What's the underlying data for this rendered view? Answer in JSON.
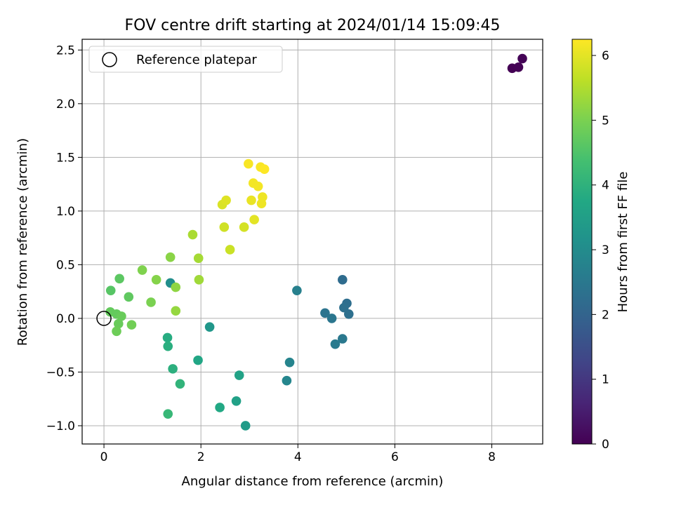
{
  "chart_data": {
    "type": "scatter",
    "title": "FOV centre drift starting at 2024/01/14 15:09:45",
    "xlabel": "Angular distance from reference (arcmin)",
    "ylabel": "Rotation from reference (arcmin)",
    "xlim": [
      -0.45,
      9.05
    ],
    "ylim": [
      -1.17,
      2.6
    ],
    "xticks": [
      0,
      2,
      4,
      6,
      8
    ],
    "yticks": [
      -1.0,
      -0.5,
      0.0,
      0.5,
      1.0,
      1.5,
      2.0,
      2.5
    ],
    "xtick_labels": [
      "0",
      "2",
      "4",
      "6",
      "8"
    ],
    "ytick_labels": [
      "−1.0",
      "−0.5",
      "0.0",
      "0.5",
      "1.0",
      "1.5",
      "2.0",
      "2.5"
    ],
    "grid": true,
    "legend": {
      "position": "top-left",
      "entries": [
        "Reference platepar"
      ]
    },
    "reference_point": {
      "x": 0,
      "y": 0
    },
    "colorbar": {
      "label": "Hours from first FF file",
      "range": [
        0,
        6.25
      ],
      "ticks": [
        0,
        1,
        2,
        3,
        4,
        5,
        6
      ],
      "tick_labels": [
        "0",
        "1",
        "2",
        "3",
        "4",
        "5",
        "6"
      ],
      "colormap": "viridis"
    },
    "points": [
      {
        "x": 8.42,
        "y": 2.33,
        "h": 0.0
      },
      {
        "x": 8.55,
        "y": 2.34,
        "h": 0.02
      },
      {
        "x": 8.63,
        "y": 2.42,
        "h": 0.04
      },
      {
        "x": 4.92,
        "y": 0.36,
        "h": 2.2
      },
      {
        "x": 5.01,
        "y": 0.14,
        "h": 2.25
      },
      {
        "x": 4.95,
        "y": 0.1,
        "h": 2.3
      },
      {
        "x": 5.05,
        "y": 0.04,
        "h": 2.3
      },
      {
        "x": 4.56,
        "y": 0.05,
        "h": 2.4
      },
      {
        "x": 4.7,
        "y": 0.0,
        "h": 2.45
      },
      {
        "x": 4.92,
        "y": -0.19,
        "h": 2.5
      },
      {
        "x": 4.77,
        "y": -0.24,
        "h": 2.55
      },
      {
        "x": 3.98,
        "y": 0.26,
        "h": 2.7
      },
      {
        "x": 3.83,
        "y": -0.41,
        "h": 2.8
      },
      {
        "x": 3.77,
        "y": -0.58,
        "h": 2.85
      },
      {
        "x": 1.37,
        "y": 0.33,
        "h": 3.05
      },
      {
        "x": 2.18,
        "y": -0.08,
        "h": 3.3
      },
      {
        "x": 2.92,
        "y": -1.0,
        "h": 3.4
      },
      {
        "x": 2.73,
        "y": -0.77,
        "h": 3.55
      },
      {
        "x": 2.79,
        "y": -0.53,
        "h": 3.6
      },
      {
        "x": 1.94,
        "y": -0.39,
        "h": 3.7
      },
      {
        "x": 2.39,
        "y": -0.83,
        "h": 3.75
      },
      {
        "x": 1.31,
        "y": -0.18,
        "h": 3.85
      },
      {
        "x": 1.32,
        "y": -0.26,
        "h": 3.9
      },
      {
        "x": 1.42,
        "y": -0.47,
        "h": 3.95
      },
      {
        "x": 1.57,
        "y": -0.61,
        "h": 4.05
      },
      {
        "x": 1.32,
        "y": -0.89,
        "h": 4.15
      },
      {
        "x": 0.14,
        "y": 0.26,
        "h": 4.6
      },
      {
        "x": 0.32,
        "y": 0.37,
        "h": 4.65
      },
      {
        "x": 0.51,
        "y": 0.2,
        "h": 4.7
      },
      {
        "x": 0.13,
        "y": 0.06,
        "h": 4.75
      },
      {
        "x": 0.26,
        "y": 0.04,
        "h": 4.75
      },
      {
        "x": 0.36,
        "y": 0.02,
        "h": 4.8
      },
      {
        "x": 0.3,
        "y": -0.05,
        "h": 4.8
      },
      {
        "x": 0.26,
        "y": -0.12,
        "h": 4.85
      },
      {
        "x": 0.57,
        "y": -0.06,
        "h": 4.9
      },
      {
        "x": 0.97,
        "y": 0.15,
        "h": 5.0
      },
      {
        "x": 0.79,
        "y": 0.45,
        "h": 5.05
      },
      {
        "x": 1.08,
        "y": 0.36,
        "h": 5.1
      },
      {
        "x": 1.37,
        "y": 0.57,
        "h": 5.15
      },
      {
        "x": 1.48,
        "y": 0.29,
        "h": 5.2
      },
      {
        "x": 1.48,
        "y": 0.07,
        "h": 5.25
      },
      {
        "x": 1.96,
        "y": 0.36,
        "h": 5.35
      },
      {
        "x": 1.95,
        "y": 0.56,
        "h": 5.4
      },
      {
        "x": 1.83,
        "y": 0.78,
        "h": 5.45
      },
      {
        "x": 2.6,
        "y": 0.64,
        "h": 5.75
      },
      {
        "x": 2.48,
        "y": 0.85,
        "h": 5.8
      },
      {
        "x": 2.89,
        "y": 0.85,
        "h": 5.85
      },
      {
        "x": 2.44,
        "y": 1.06,
        "h": 5.9
      },
      {
        "x": 2.52,
        "y": 1.1,
        "h": 5.95
      },
      {
        "x": 3.1,
        "y": 0.92,
        "h": 6.0
      },
      {
        "x": 3.04,
        "y": 1.1,
        "h": 6.05
      },
      {
        "x": 3.25,
        "y": 1.07,
        "h": 6.1
      },
      {
        "x": 3.27,
        "y": 1.13,
        "h": 6.1
      },
      {
        "x": 3.08,
        "y": 1.26,
        "h": 6.15
      },
      {
        "x": 3.18,
        "y": 1.23,
        "h": 6.15
      },
      {
        "x": 2.98,
        "y": 1.44,
        "h": 6.2
      },
      {
        "x": 3.23,
        "y": 1.41,
        "h": 6.2
      },
      {
        "x": 3.31,
        "y": 1.39,
        "h": 6.25
      }
    ]
  }
}
